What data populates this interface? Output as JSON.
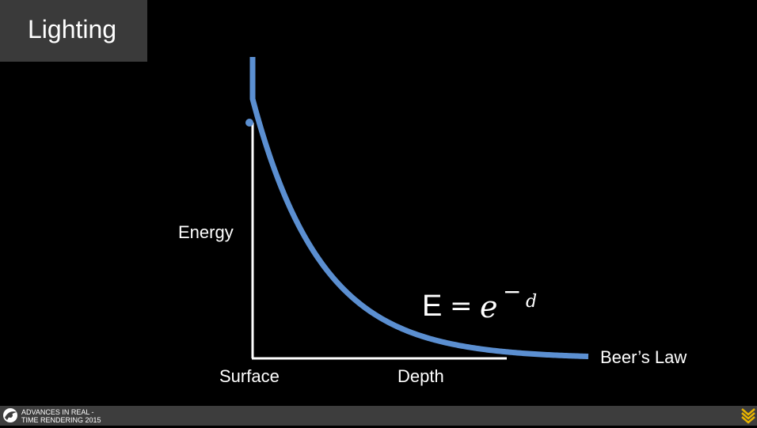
{
  "slide": {
    "title": "Lighting"
  },
  "diagram": {
    "labels": {
      "energy": "Energy",
      "surface": "Surface",
      "depth": "Depth",
      "curve_name": "Beer’s Law"
    },
    "formula": {
      "lhs": "E",
      "equals": "=",
      "base": "e",
      "sign": "−",
      "exponent": "d"
    },
    "colors": {
      "curve": "#5b8fd1",
      "axes": "#ffffff",
      "background": "#000000"
    }
  },
  "footer": {
    "line1": "ADVANCES IN REAL -",
    "line2": "TIME RENDERING 2015",
    "logo_icon": "circle-swoosh-icon",
    "brand_icon": "chevron-stack-icon",
    "brand_color": "#e8b400"
  }
}
